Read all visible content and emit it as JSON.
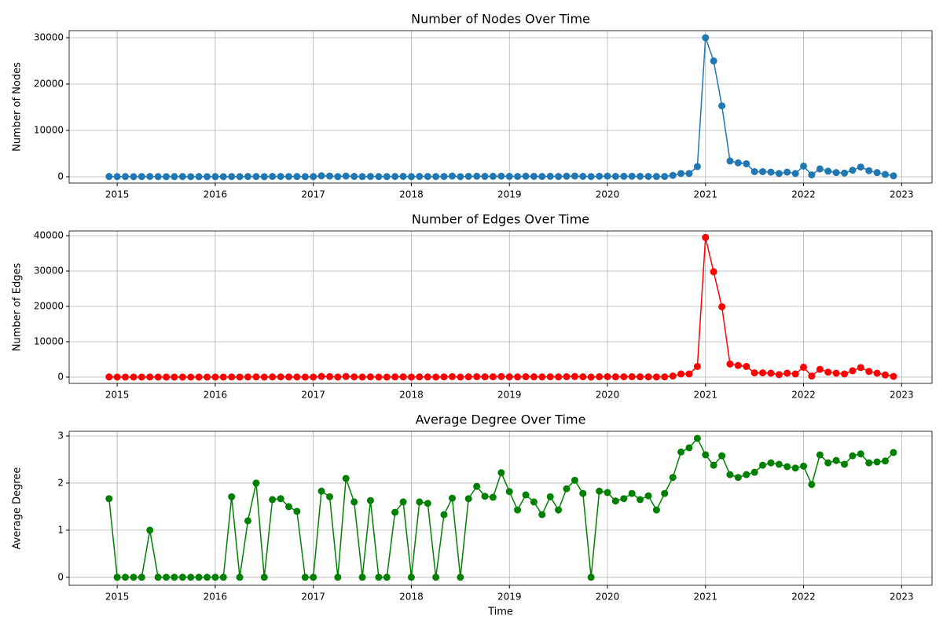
{
  "chart_data": [
    {
      "type": "line",
      "title": "Number of Nodes Over Time",
      "y_label": "Number of Nodes",
      "color": "#1f77b4",
      "grid": true,
      "xlim": [
        2014.51,
        2023.31
      ],
      "ylim": [
        -1360,
        31530
      ],
      "xticks": [
        2015,
        2016,
        2017,
        2018,
        2019,
        2020,
        2021,
        2022,
        2023
      ],
      "yticks": [
        0,
        10000,
        20000,
        30000
      ],
      "x": [
        2014.917,
        2015,
        2015.083,
        2015.167,
        2015.25,
        2015.333,
        2015.417,
        2015.5,
        2015.583,
        2015.667,
        2015.75,
        2015.833,
        2015.917,
        2016,
        2016.083,
        2016.167,
        2016.25,
        2016.333,
        2016.417,
        2016.5,
        2016.583,
        2016.667,
        2016.75,
        2016.833,
        2016.917,
        2017,
        2017.083,
        2017.167,
        2017.25,
        2017.333,
        2017.417,
        2017.5,
        2017.583,
        2017.667,
        2017.75,
        2017.833,
        2017.917,
        2018,
        2018.083,
        2018.167,
        2018.25,
        2018.333,
        2018.417,
        2018.5,
        2018.583,
        2018.667,
        2018.75,
        2018.833,
        2018.917,
        2019,
        2019.083,
        2019.167,
        2019.25,
        2019.333,
        2019.417,
        2019.5,
        2019.583,
        2019.667,
        2019.75,
        2019.833,
        2019.917,
        2020,
        2020.083,
        2020.167,
        2020.25,
        2020.333,
        2020.417,
        2020.5,
        2020.583,
        2020.667,
        2020.75,
        2020.833,
        2020.917,
        2021,
        2021.083,
        2021.167,
        2021.25,
        2021.333,
        2021.417,
        2021.5,
        2021.583,
        2021.667,
        2021.75,
        2021.833,
        2021.917,
        2022,
        2022.083,
        2022.167,
        2022.25,
        2022.333,
        2022.417,
        2022.5,
        2022.583,
        2022.667,
        2022.75,
        2022.833,
        2022.917
      ],
      "values": [
        50,
        30,
        40,
        20,
        40,
        60,
        30,
        20,
        30,
        40,
        20,
        30,
        20,
        30,
        20,
        40,
        20,
        60,
        50,
        20,
        60,
        70,
        40,
        50,
        30,
        30,
        200,
        150,
        30,
        150,
        80,
        30,
        70,
        30,
        40,
        60,
        80,
        30,
        80,
        60,
        40,
        70,
        150,
        20,
        90,
        120,
        80,
        100,
        130,
        80,
        60,
        120,
        90,
        60,
        100,
        70,
        120,
        150,
        90,
        40,
        110,
        130,
        90,
        100,
        110,
        90,
        70,
        50,
        60,
        300,
        700,
        700,
        2200,
        30000,
        25000,
        15300,
        3400,
        3000,
        2800,
        1100,
        1100,
        1000,
        700,
        1000,
        700,
        2300,
        400,
        1700,
        1200,
        900,
        800,
        1400,
        2100,
        1300,
        900,
        500,
        200
      ]
    },
    {
      "type": "line",
      "title": "Number of Edges Over Time",
      "y_label": "Number of Edges",
      "color": "#ff0000",
      "grid": true,
      "xlim": [
        2014.51,
        2023.31
      ],
      "ylim": [
        -1780,
        41330
      ],
      "xticks": [
        2015,
        2016,
        2017,
        2018,
        2019,
        2020,
        2021,
        2022,
        2023
      ],
      "yticks": [
        0,
        10000,
        20000,
        30000,
        40000
      ],
      "x": [
        2014.917,
        2015,
        2015.083,
        2015.167,
        2015.25,
        2015.333,
        2015.417,
        2015.5,
        2015.583,
        2015.667,
        2015.75,
        2015.833,
        2015.917,
        2016,
        2016.083,
        2016.167,
        2016.25,
        2016.333,
        2016.417,
        2016.5,
        2016.583,
        2016.667,
        2016.75,
        2016.833,
        2016.917,
        2017,
        2017.083,
        2017.167,
        2017.25,
        2017.333,
        2017.417,
        2017.5,
        2017.583,
        2017.667,
        2017.75,
        2017.833,
        2017.917,
        2018,
        2018.083,
        2018.167,
        2018.25,
        2018.333,
        2018.417,
        2018.5,
        2018.583,
        2018.667,
        2018.75,
        2018.833,
        2018.917,
        2019,
        2019.083,
        2019.167,
        2019.25,
        2019.333,
        2019.417,
        2019.5,
        2019.583,
        2019.667,
        2019.75,
        2019.833,
        2019.917,
        2020,
        2020.083,
        2020.167,
        2020.25,
        2020.333,
        2020.417,
        2020.5,
        2020.583,
        2020.667,
        2020.75,
        2020.833,
        2020.917,
        2021,
        2021.083,
        2021.167,
        2021.25,
        2021.333,
        2021.417,
        2021.5,
        2021.583,
        2021.667,
        2021.75,
        2021.833,
        2021.917,
        2022,
        2022.083,
        2022.167,
        2022.25,
        2022.333,
        2022.417,
        2022.5,
        2022.583,
        2022.667,
        2022.75,
        2022.833,
        2022.917
      ],
      "values": [
        42,
        0,
        0,
        0,
        0,
        30,
        0,
        0,
        0,
        0,
        0,
        0,
        0,
        0,
        0,
        34,
        0,
        36,
        50,
        0,
        50,
        58,
        30,
        35,
        0,
        0,
        183,
        128,
        0,
        158,
        64,
        0,
        57,
        0,
        0,
        41,
        64,
        0,
        64,
        47,
        0,
        58,
        126,
        0,
        75,
        116,
        69,
        85,
        144,
        73,
        43,
        105,
        72,
        40,
        86,
        50,
        113,
        155,
        80,
        0,
        101,
        117,
        73,
        84,
        98,
        74,
        61,
        36,
        53,
        300,
        900,
        900,
        3000,
        39500,
        29800,
        19900,
        3700,
        3300,
        3000,
        1200,
        1200,
        1100,
        700,
        1100,
        900,
        2800,
        300,
        2200,
        1400,
        1100,
        900,
        1800,
        2700,
        1600,
        1100,
        600,
        200
      ]
    },
    {
      "type": "line",
      "title": "Average Degree Over Time",
      "y_label": "Average Degree",
      "x_label": "Time",
      "color": "#008000",
      "grid": true,
      "xlim": [
        2014.51,
        2023.31
      ],
      "ylim": [
        -0.17,
        3.1
      ],
      "xticks": [
        2015,
        2016,
        2017,
        2018,
        2019,
        2020,
        2021,
        2022,
        2023
      ],
      "yticks": [
        0,
        1,
        2,
        3
      ],
      "x": [
        2014.917,
        2015,
        2015.083,
        2015.167,
        2015.25,
        2015.333,
        2015.417,
        2015.5,
        2015.583,
        2015.667,
        2015.75,
        2015.833,
        2015.917,
        2016,
        2016.083,
        2016.167,
        2016.25,
        2016.333,
        2016.417,
        2016.5,
        2016.583,
        2016.667,
        2016.75,
        2016.833,
        2016.917,
        2017,
        2017.083,
        2017.167,
        2017.25,
        2017.333,
        2017.417,
        2017.5,
        2017.583,
        2017.667,
        2017.75,
        2017.833,
        2017.917,
        2018,
        2018.083,
        2018.167,
        2018.25,
        2018.333,
        2018.417,
        2018.5,
        2018.583,
        2018.667,
        2018.75,
        2018.833,
        2018.917,
        2019,
        2019.083,
        2019.167,
        2019.25,
        2019.333,
        2019.417,
        2019.5,
        2019.583,
        2019.667,
        2019.75,
        2019.833,
        2019.917,
        2020,
        2020.083,
        2020.167,
        2020.25,
        2020.333,
        2020.417,
        2020.5,
        2020.583,
        2020.667,
        2020.75,
        2020.833,
        2020.917,
        2021,
        2021.083,
        2021.167,
        2021.25,
        2021.333,
        2021.417,
        2021.5,
        2021.583,
        2021.667,
        2021.75,
        2021.833,
        2021.917,
        2022,
        2022.083,
        2022.167,
        2022.25,
        2022.333,
        2022.417,
        2022.5,
        2022.583,
        2022.667,
        2022.75,
        2022.833,
        2022.917
      ],
      "values": [
        1.67,
        0,
        0,
        0,
        0,
        1.0,
        0,
        0,
        0,
        0,
        0,
        0,
        0,
        0,
        0,
        1.71,
        0,
        1.2,
        2.0,
        0,
        1.65,
        1.67,
        1.5,
        1.4,
        0,
        0,
        1.83,
        1.71,
        0,
        2.1,
        1.6,
        0,
        1.63,
        0,
        0,
        1.38,
        1.6,
        0,
        1.6,
        1.57,
        0,
        1.33,
        1.68,
        0,
        1.67,
        1.93,
        1.72,
        1.7,
        2.22,
        1.82,
        1.43,
        1.75,
        1.6,
        1.33,
        1.71,
        1.43,
        1.88,
        2.06,
        1.78,
        0,
        1.83,
        1.8,
        1.62,
        1.67,
        1.78,
        1.65,
        1.73,
        1.43,
        1.78,
        2.12,
        2.66,
        2.75,
        2.95,
        2.6,
        2.38,
        2.58,
        2.18,
        2.12,
        2.18,
        2.23,
        2.38,
        2.43,
        2.4,
        2.35,
        2.32,
        2.36,
        1.97,
        2.6,
        2.43,
        2.48,
        2.4,
        2.58,
        2.62,
        2.43,
        2.45,
        2.47,
        2.65
      ]
    }
  ]
}
